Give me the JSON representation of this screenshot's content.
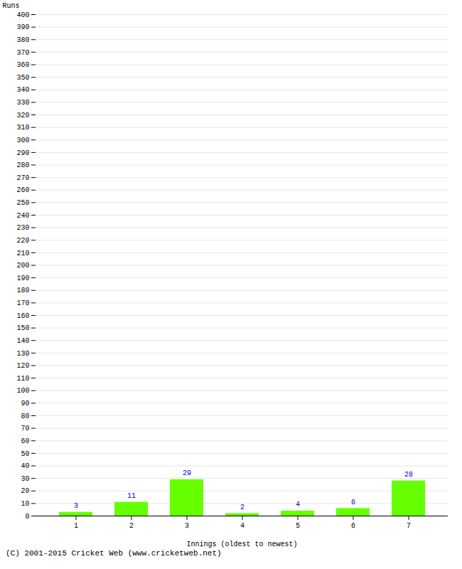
{
  "chart_data": {
    "type": "bar",
    "categories": [
      "1",
      "2",
      "3",
      "4",
      "5",
      "6",
      "7"
    ],
    "values": [
      3,
      11,
      29,
      2,
      4,
      6,
      28
    ],
    "color": "#66ff00",
    "x_label": "Innings (oldest to newest)",
    "y_label": "Runs",
    "ylim": [
      0,
      400
    ],
    "yticks": [
      0,
      10,
      20,
      30,
      40,
      50,
      60,
      70,
      80,
      90,
      100,
      110,
      120,
      130,
      140,
      150,
      160,
      170,
      180,
      190,
      200,
      210,
      220,
      230,
      240,
      250,
      260,
      270,
      280,
      290,
      300,
      310,
      320,
      330,
      340,
      350,
      360,
      370,
      380,
      390,
      400
    ],
    "grid": true,
    "data_labels": true,
    "caption": "(C) 2001-2015 Cricket Web (www.cricketweb.net)"
  }
}
